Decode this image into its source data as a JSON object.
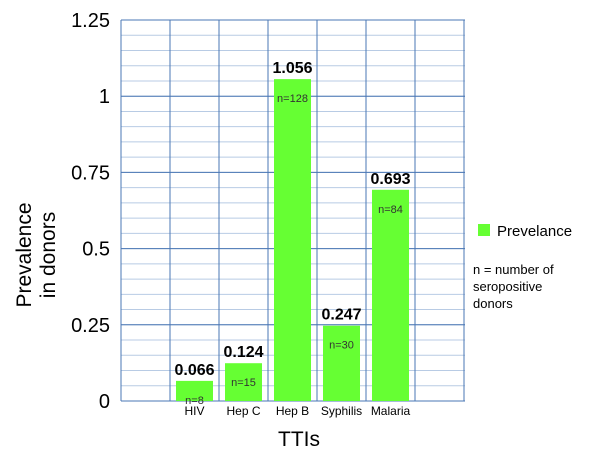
{
  "chart_data": {
    "type": "bar",
    "title": "",
    "xlabel": "TTIs",
    "ylabel": "Prevalence in donors",
    "ylim": [
      0,
      1.25
    ],
    "yticks": [
      "0",
      "0.25",
      "0.5",
      "0.75",
      "1",
      "1.25"
    ],
    "ytick_values": [
      0,
      0.25,
      0.5,
      0.75,
      1,
      1.25
    ],
    "categories": [
      "HIV",
      "Hep C",
      "Hep B",
      "Syphilis",
      "Malaria"
    ],
    "series": [
      {
        "name": "Prevelance",
        "values": [
          0.066,
          0.124,
          1.056,
          0.247,
          0.693
        ],
        "value_labels": [
          "0.066",
          "0.124",
          "1.056",
          "0.247",
          "0.693"
        ],
        "n_labels": [
          "n=8",
          "n=15",
          "n=128",
          "n=30",
          "n=84"
        ]
      }
    ],
    "legend": {
      "placement": "right",
      "entries": [
        "Prevelance"
      ]
    },
    "annotation": "n = number of seropositive donors",
    "grid": true,
    "colors": {
      "bar": "#66ff33",
      "grid_major": "#4a77b4",
      "grid_minor": "#b8cbe4"
    }
  }
}
